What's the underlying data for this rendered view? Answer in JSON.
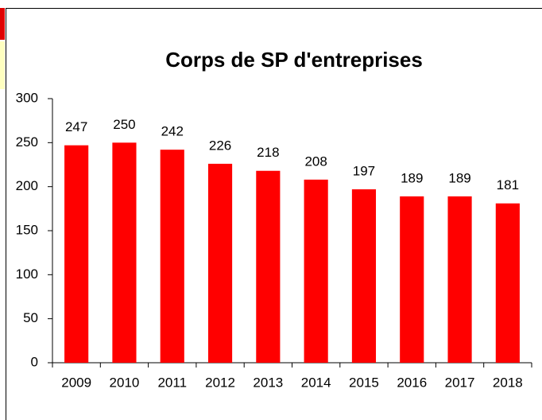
{
  "chart_data": {
    "type": "bar",
    "title": "Corps de SP d'entreprises",
    "categories": [
      "2009",
      "2010",
      "2011",
      "2012",
      "2013",
      "2014",
      "2015",
      "2016",
      "2017",
      "2018"
    ],
    "values": [
      247,
      250,
      242,
      226,
      218,
      208,
      197,
      189,
      189,
      181
    ],
    "color": "#ff0000",
    "ylim": [
      0,
      300
    ],
    "yticks": [
      0,
      50,
      100,
      150,
      200,
      250,
      300
    ],
    "grid": false
  }
}
